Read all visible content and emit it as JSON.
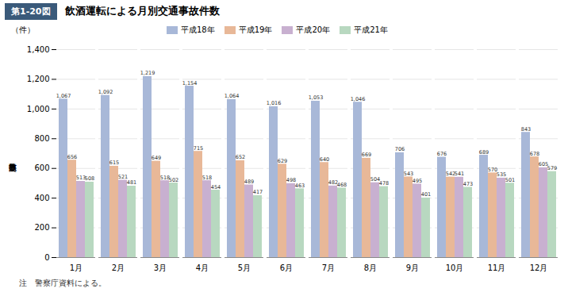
{
  "chart_data": {
    "type": "bar",
    "title": "飲酒運転による月別交通事故件数",
    "annotations": [
      "第1-20図",
      "注　警察庁資料による。"
    ],
    "ylabel": "交通事故件数",
    "ylabel_unit": "（件）",
    "categories": [
      "1月",
      "2月",
      "3月",
      "4月",
      "5月",
      "6月",
      "7月",
      "8月",
      "9月",
      "10月",
      "11月",
      "12月"
    ],
    "series": [
      {
        "name": "平成18年",
        "color": "#a8b8d8",
        "values": [
          1067,
          1092,
          1219,
          1154,
          1064,
          1016,
          1053,
          1046,
          706,
          676,
          689,
          843
        ],
        "value_labels": [
          "1,067",
          "1,092",
          "1,219",
          "1,154",
          "1,064",
          "1,016",
          "1,053",
          "1,046",
          "706",
          "676",
          "689",
          "843"
        ]
      },
      {
        "name": "平成19年",
        "color": "#e8b898",
        "values": [
          656,
          615,
          649,
          715,
          652,
          629,
          640,
          669,
          543,
          542,
          570,
          678
        ]
      },
      {
        "name": "平成20年",
        "color": "#c8b0d0",
        "values": [
          513,
          521,
          518,
          518,
          489,
          498,
          482,
          504,
          495,
          541,
          535,
          605
        ]
      },
      {
        "name": "平成21年",
        "color": "#b8d8c0",
        "values": [
          508,
          481,
          502,
          454,
          417,
          463,
          468,
          478,
          401,
          473,
          501,
          579
        ]
      }
    ],
    "ylim": [
      0,
      1400
    ],
    "yticks": [
      0,
      200,
      400,
      600,
      800,
      {
        "value": 1000,
        "label": "1,000"
      },
      {
        "value": 1200,
        "label": "1,200"
      },
      {
        "value": 1400,
        "label": "1,400"
      }
    ],
    "grid": true,
    "legend": "top",
    "data_labels": true
  }
}
